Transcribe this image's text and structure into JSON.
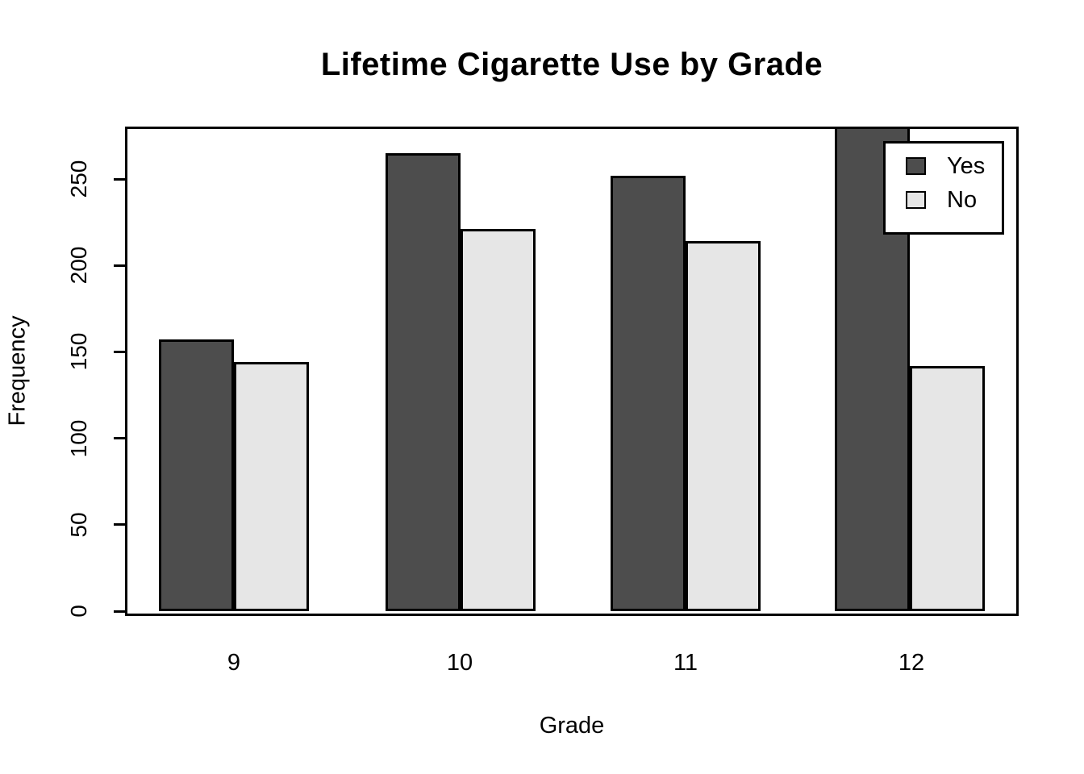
{
  "chart_data": {
    "type": "bar",
    "grouped": true,
    "title": "Lifetime Cigarette Use by Grade",
    "xlabel": "Grade",
    "ylabel": "Frequency",
    "categories": [
      "9",
      "10",
      "11",
      "12"
    ],
    "series": [
      {
        "name": "Yes",
        "color": "#4D4D4D",
        "values": [
          157,
          265,
          252,
          283
        ],
        "clipped_at_plot_top": [
          false,
          false,
          false,
          true
        ]
      },
      {
        "name": "No",
        "color": "#E6E6E6",
        "values": [
          144,
          221,
          214,
          142
        ],
        "clipped_at_plot_top": [
          false,
          false,
          false,
          false
        ]
      }
    ],
    "yticks": [
      0,
      50,
      100,
      150,
      200,
      250
    ],
    "ylim": [
      0,
      280
    ],
    "grid": false,
    "bar_border_color": "#000000",
    "plot_box_color": "#000000",
    "background_color": "#FFFFFF",
    "legend": {
      "position": "top-right",
      "entries": [
        "Yes",
        "No"
      ]
    }
  }
}
